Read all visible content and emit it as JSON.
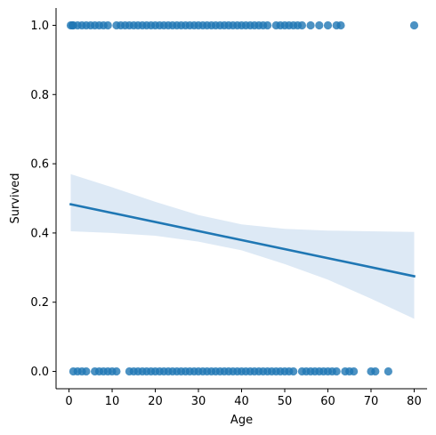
{
  "chart_data": {
    "type": "scatter",
    "xlabel": "Age",
    "ylabel": "Survived",
    "xlim": [
      -3,
      83
    ],
    "ylim": [
      -0.05,
      1.05
    ],
    "xticks": [
      0,
      10,
      20,
      30,
      40,
      50,
      60,
      70,
      80
    ],
    "xtick_labels": [
      "0",
      "10",
      "20",
      "30",
      "40",
      "50",
      "60",
      "70",
      "80"
    ],
    "yticks": [
      0.0,
      0.2,
      0.4,
      0.6,
      0.8,
      1.0
    ],
    "ytick_labels": [
      "0.0",
      "0.2",
      "0.4",
      "0.6",
      "0.8",
      "1.0"
    ],
    "grid": false,
    "colors": {
      "points": "#1f77b4",
      "line": "#1f77b4",
      "ci_band": "#c6dbef"
    },
    "series": [
      {
        "values_x": [
          0.4,
          0.8,
          1,
          2,
          3,
          4,
          5,
          6,
          7,
          8,
          9,
          11,
          12,
          13,
          14,
          15,
          16,
          17,
          18,
          19,
          20,
          21,
          22,
          23,
          24,
          25,
          26,
          27,
          28,
          29,
          30,
          31,
          32,
          33,
          34,
          35,
          36,
          37,
          38,
          39,
          40,
          41,
          42,
          43,
          44,
          45,
          46,
          48,
          49,
          50,
          51,
          52,
          53,
          54,
          56,
          58,
          60,
          62,
          63,
          80
        ],
        "values_y": 1
      },
      {
        "values_x": [
          1,
          2,
          3,
          4,
          6,
          7,
          8,
          9,
          10,
          11,
          14,
          15,
          16,
          17,
          18,
          19,
          20,
          21,
          22,
          23,
          24,
          25,
          26,
          27,
          28,
          29,
          30,
          31,
          32,
          33,
          34,
          35,
          36,
          37,
          38,
          39,
          40,
          41,
          42,
          43,
          44,
          45,
          46,
          47,
          48,
          49,
          50,
          51,
          52,
          54,
          55,
          56,
          57,
          58,
          59,
          60,
          61,
          62,
          64,
          65,
          66,
          70,
          71,
          74
        ],
        "values_y": 0
      }
    ],
    "regression": {
      "x": [
        0.4,
        80
      ],
      "y": [
        0.483,
        0.275
      ],
      "ci_lower": [
        {
          "x": 0.4,
          "y": 0.405
        },
        {
          "x": 10,
          "y": 0.4
        },
        {
          "x": 20,
          "y": 0.392
        },
        {
          "x": 30,
          "y": 0.375
        },
        {
          "x": 40,
          "y": 0.35
        },
        {
          "x": 50,
          "y": 0.31
        },
        {
          "x": 60,
          "y": 0.265
        },
        {
          "x": 70,
          "y": 0.21
        },
        {
          "x": 80,
          "y": 0.152
        }
      ],
      "ci_upper": [
        {
          "x": 0.4,
          "y": 0.57
        },
        {
          "x": 10,
          "y": 0.532
        },
        {
          "x": 20,
          "y": 0.49
        },
        {
          "x": 30,
          "y": 0.452
        },
        {
          "x": 40,
          "y": 0.425
        },
        {
          "x": 50,
          "y": 0.412
        },
        {
          "x": 60,
          "y": 0.407
        },
        {
          "x": 70,
          "y": 0.405
        },
        {
          "x": 80,
          "y": 0.403
        }
      ]
    }
  }
}
